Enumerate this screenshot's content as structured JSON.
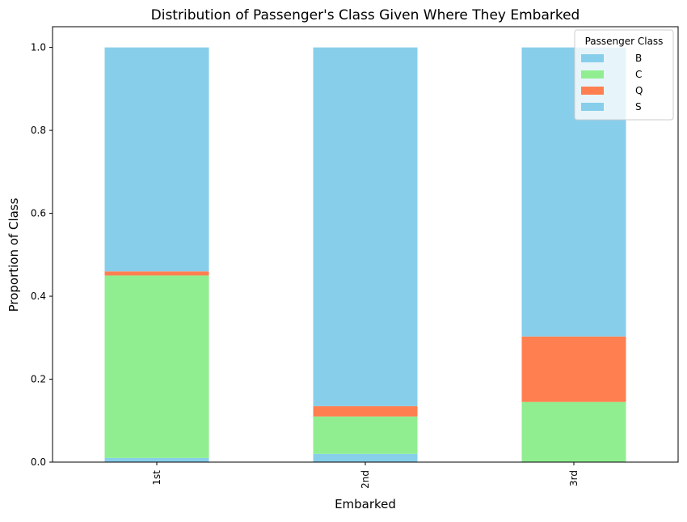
{
  "chart_data": {
    "type": "bar",
    "stacked": true,
    "title": "Distribution of Passenger's Class Given Where They Embarked",
    "xlabel": "Embarked",
    "ylabel": "Proportion of Class",
    "categories": [
      "1st",
      "2nd",
      "3rd"
    ],
    "ylim": [
      0,
      1.05
    ],
    "yticks": [
      "0.0",
      "0.2",
      "0.4",
      "0.6",
      "0.8",
      "1.0"
    ],
    "grid": false,
    "legend": {
      "title": "Passenger Class",
      "position": "top-right"
    },
    "series": [
      {
        "name": "B",
        "color": "#87CEEB",
        "values": [
          0.01,
          0.02,
          0.0
        ]
      },
      {
        "name": "C",
        "color": "#90EE90",
        "values": [
          0.44,
          0.09,
          0.145
        ]
      },
      {
        "name": "Q",
        "color": "#FF7F50",
        "values": [
          0.01,
          0.025,
          0.158
        ]
      },
      {
        "name": "S",
        "color": "#87CEEB",
        "values": [
          0.54,
          0.865,
          0.697
        ]
      }
    ]
  }
}
